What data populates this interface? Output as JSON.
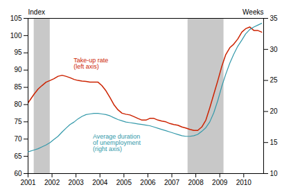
{
  "chart_data": {
    "type": "line",
    "ylabel": "Index",
    "y2label": "Weeks",
    "xlim": [
      2001.0,
      2010.83
    ],
    "xticks": [
      2001,
      2002,
      2003,
      2004,
      2005,
      2006,
      2007,
      2008,
      2009,
      2010
    ],
    "ylim": [
      60,
      105
    ],
    "yticks": [
      60,
      65,
      70,
      75,
      80,
      85,
      90,
      95,
      100,
      105
    ],
    "y2lim": [
      10,
      35
    ],
    "y2ticks": [
      10,
      15,
      20,
      25,
      30,
      35
    ],
    "grid": false,
    "shaded_regions": [
      {
        "from": 2001.25,
        "to": 2001.92,
        "color": "#c8c8c8"
      },
      {
        "from": 2007.67,
        "to": 2009.17,
        "color": "#c8c8c8"
      }
    ],
    "x": [
      2001.0,
      2001.25,
      2001.42,
      2001.58,
      2001.75,
      2001.92,
      2002.08,
      2002.25,
      2002.42,
      2002.58,
      2002.75,
      2002.92,
      2003.08,
      2003.25,
      2003.42,
      2003.58,
      2003.75,
      2003.92,
      2004.08,
      2004.25,
      2004.42,
      2004.58,
      2004.75,
      2004.92,
      2005.08,
      2005.25,
      2005.42,
      2005.58,
      2005.75,
      2005.92,
      2006.08,
      2006.25,
      2006.42,
      2006.58,
      2006.75,
      2006.92,
      2007.08,
      2007.25,
      2007.42,
      2007.58,
      2007.75,
      2007.92,
      2008.08,
      2008.25,
      2008.42,
      2008.58,
      2008.75,
      2008.92,
      2009.08,
      2009.25,
      2009.42,
      2009.58,
      2009.75,
      2009.92,
      2010.08,
      2010.25,
      2010.42,
      2010.58,
      2010.75
    ],
    "series": [
      {
        "color": "#cc2200",
        "values": [
          80.5,
          83.0,
          84.5,
          85.5,
          86.5,
          87.0,
          87.5,
          88.2,
          88.5,
          88.2,
          87.8,
          87.3,
          87.0,
          86.8,
          86.7,
          86.5,
          86.5,
          86.5,
          85.5,
          84.0,
          82.0,
          80.0,
          78.5,
          77.5,
          77.2,
          77.0,
          76.5,
          76.0,
          75.5,
          75.5,
          76.0,
          76.0,
          75.5,
          75.2,
          75.0,
          74.5,
          74.2,
          74.0,
          73.5,
          73.2,
          72.8,
          72.5,
          72.5,
          73.5,
          75.5,
          79.0,
          83.0,
          87.0,
          91.0,
          94.5,
          96.5,
          97.5,
          99.0,
          101.0,
          102.0,
          102.5,
          101.5,
          101.5,
          101.0
        ]
      },
      {
        "color": "#3399aa",
        "axis": "y2",
        "values": [
          13.5,
          13.8,
          14.0,
          14.3,
          14.6,
          15.0,
          15.5,
          16.0,
          16.7,
          17.3,
          17.9,
          18.3,
          18.8,
          19.2,
          19.5,
          19.6,
          19.7,
          19.7,
          19.6,
          19.5,
          19.3,
          19.0,
          18.7,
          18.5,
          18.3,
          18.2,
          18.1,
          18.0,
          17.9,
          17.8,
          17.7,
          17.5,
          17.3,
          17.1,
          16.9,
          16.7,
          16.5,
          16.3,
          16.1,
          16.0,
          16.0,
          16.1,
          16.3,
          16.8,
          17.4,
          18.3,
          19.8,
          21.8,
          24.0,
          26.0,
          27.8,
          29.2,
          30.5,
          31.5,
          32.5,
          33.2,
          33.6,
          33.9,
          34.2
        ]
      }
    ],
    "annotations": [
      {
        "text": "Take-up rate\n(left axis)",
        "x": 2002.9,
        "y": 90.5,
        "color": "#cc2200"
      },
      {
        "text": "Average duration\nof unemployment\n(right axis)",
        "x": 2003.7,
        "y": 66.5,
        "color": "#3399aa"
      }
    ]
  }
}
